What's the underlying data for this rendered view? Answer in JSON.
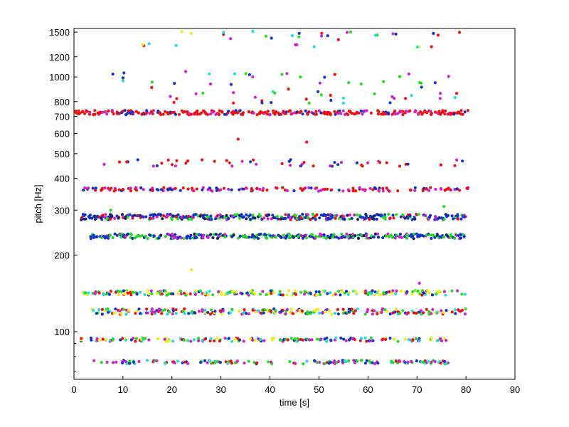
{
  "chart_data": {
    "type": "scatter",
    "title": "",
    "xlabel": "time [s]",
    "ylabel": "pitch [Hz]",
    "xlim": [
      0,
      90
    ],
    "ylim": [
      65,
      1550
    ],
    "y_scale": "log",
    "grid": false,
    "legend": "none",
    "x_ticks": [
      0,
      10,
      20,
      30,
      40,
      50,
      60,
      70,
      80,
      90
    ],
    "x_tick_labels": [
      "0",
      "10",
      "20",
      "30",
      "40",
      "50",
      "60",
      "70",
      "80",
      "90"
    ],
    "y_ticks": [
      100,
      200,
      300,
      400,
      500,
      600,
      700,
      800,
      1000,
      1200,
      1500
    ],
    "y_tick_labels": [
      "100",
      "200",
      "300",
      "400",
      "500",
      "600",
      "700",
      "800",
      "1000",
      "1200",
      "1500"
    ],
    "series_colors": {
      "red": "#ee1111",
      "blue": "#1133cc",
      "green": "#22dd22",
      "yellow": "#eeee11",
      "magenta": "#cc22cc",
      "cyan": "#22dddd",
      "navy": "#112266"
    },
    "bands": [
      {
        "pitch": 1460,
        "t_start": 20,
        "t_end": 80,
        "step": 2.8,
        "jitter": 60,
        "color_mix": [
          "blue",
          "red",
          "magenta",
          "green",
          "yellow",
          "cyan"
        ],
        "density": 0.55
      },
      {
        "pitch": 1330,
        "t_start": 11,
        "t_end": 80,
        "step": 3.5,
        "jitter": 20,
        "color_mix": [
          "red",
          "magenta",
          "cyan",
          "yellow"
        ],
        "density": 0.45
      },
      {
        "pitch": 950,
        "t_start": 3,
        "t_end": 78,
        "step": 2.5,
        "jitter": 90,
        "color_mix": [
          "red",
          "blue",
          "magenta",
          "green",
          "cyan"
        ],
        "density": 0.6
      },
      {
        "pitch": 825,
        "t_start": 2,
        "t_end": 78,
        "step": 3.0,
        "jitter": 40,
        "color_mix": [
          "red",
          "blue",
          "magenta",
          "green",
          "cyan"
        ],
        "density": 0.5
      },
      {
        "pitch": 725,
        "t_start": 0.5,
        "t_end": 80.5,
        "step": 0.55,
        "jitter": 14,
        "color_mix": [
          "red",
          "red",
          "red",
          "red",
          "red",
          "magenta",
          "blue"
        ],
        "density": 0.95
      },
      {
        "pitch": 460,
        "t_start": 0.5,
        "t_end": 79,
        "step": 2.0,
        "jitter": 14,
        "color_mix": [
          "red",
          "red",
          "red",
          "blue",
          "magenta"
        ],
        "density": 0.7
      },
      {
        "pitch": 362,
        "t_start": 1,
        "t_end": 80.5,
        "step": 0.9,
        "jitter": 6,
        "color_mix": [
          "red",
          "red",
          "blue",
          "magenta"
        ],
        "density": 0.85
      },
      {
        "pitch": 282,
        "t_start": 1.5,
        "t_end": 80,
        "step": 0.45,
        "jitter": 7,
        "color_mix": [
          "blue",
          "blue",
          "blue",
          "magenta",
          "red",
          "green",
          "navy"
        ],
        "density": 0.95
      },
      {
        "pitch": 237,
        "t_start": 3.5,
        "t_end": 80,
        "step": 0.45,
        "jitter": 5,
        "color_mix": [
          "blue",
          "blue",
          "blue",
          "green",
          "green",
          "navy",
          "magenta"
        ],
        "density": 0.95
      },
      {
        "pitch": 142,
        "t_start": 2,
        "t_end": 80,
        "step": 0.6,
        "jitter": 3,
        "color_mix": [
          "green",
          "green",
          "yellow",
          "yellow",
          "blue",
          "red",
          "magenta",
          "cyan"
        ],
        "density": 0.9
      },
      {
        "pitch": 120,
        "t_start": 3.5,
        "t_end": 80,
        "step": 0.6,
        "jitter": 3,
        "color_mix": [
          "green",
          "yellow",
          "blue",
          "red",
          "magenta",
          "cyan"
        ],
        "density": 0.9
      },
      {
        "pitch": 93,
        "t_start": 1.5,
        "t_end": 76,
        "step": 0.75,
        "jitter": 1.5,
        "color_mix": [
          "red",
          "yellow",
          "green",
          "blue",
          "magenta",
          "cyan"
        ],
        "density": 0.8
      },
      {
        "pitch": 76,
        "t_start": 3.5,
        "t_end": 78,
        "step": 0.8,
        "jitter": 1.2,
        "color_mix": [
          "red",
          "blue",
          "green",
          "cyan",
          "magenta"
        ],
        "density": 0.75
      }
    ],
    "extra_points": [
      {
        "x": 24,
        "y": 175,
        "color": "yellow"
      },
      {
        "x": 33.5,
        "y": 570,
        "color": "red"
      },
      {
        "x": 47.5,
        "y": 555,
        "color": "red"
      },
      {
        "x": 22.8,
        "y": 1050,
        "color": "magenta"
      },
      {
        "x": 7.5,
        "y": 300,
        "color": "green"
      },
      {
        "x": 75.5,
        "y": 310,
        "color": "green"
      },
      {
        "x": 70.5,
        "y": 155,
        "color": "magenta"
      }
    ]
  }
}
